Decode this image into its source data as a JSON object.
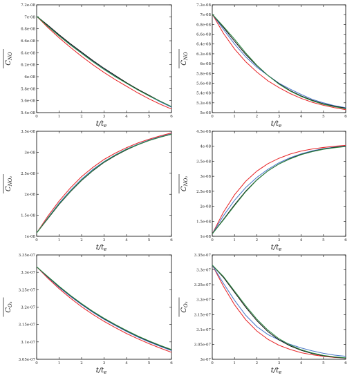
{
  "colors": {
    "red": "#e8282b",
    "blue": "#4a78c8",
    "black": "#111111",
    "green": "#2e8b45"
  },
  "chart_data": [
    {
      "type": "line",
      "ylabel_base": "C",
      "ylabel_sub": "NO",
      "xlabel": "t/t",
      "xlabel_sub": "e",
      "xlim": [
        0,
        6
      ],
      "ylim": [
        5.4e-08,
        7.2e-08
      ],
      "xticks": [
        0,
        1,
        2,
        3,
        4,
        5,
        6
      ],
      "yticks": [
        5.4e-08,
        5.6e-08,
        5.8e-08,
        6e-08,
        6.2e-08,
        6.4e-08,
        6.6e-08,
        6.8e-08,
        7e-08,
        7.2e-08
      ],
      "ytick_labels": [
        "5.4e-08",
        "5.6e-08",
        "5.8e-08",
        "6e-08",
        "6.2e-08",
        "6.4e-08",
        "6.6e-08",
        "6.8e-08",
        "7e-08",
        "7.2e-08"
      ],
      "x": [
        0,
        0.5,
        1,
        1.5,
        2,
        2.5,
        3,
        3.5,
        4,
        4.5,
        5,
        5.5,
        6
      ],
      "series": [
        {
          "color": "red",
          "values": [
            7.01e-08,
            6.82e-08,
            6.65e-08,
            6.49e-08,
            6.34e-08,
            6.2e-08,
            6.07e-08,
            5.95e-08,
            5.84e-08,
            5.73e-08,
            5.63e-08,
            5.54e-08,
            5.46e-08
          ]
        },
        {
          "color": "blue",
          "values": [
            7.01e-08,
            6.85e-08,
            6.69e-08,
            6.54e-08,
            6.4e-08,
            6.26e-08,
            6.13e-08,
            6.01e-08,
            5.89e-08,
            5.78e-08,
            5.68e-08,
            5.58e-08,
            5.49e-08
          ]
        },
        {
          "color": "black",
          "values": [
            7.01e-08,
            6.86e-08,
            6.7e-08,
            6.55e-08,
            6.41e-08,
            6.27e-08,
            6.14e-08,
            6.02e-08,
            5.9e-08,
            5.79e-08,
            5.69e-08,
            5.59e-08,
            5.5e-08
          ]
        },
        {
          "color": "green",
          "values": [
            7.01e-08,
            6.84e-08,
            6.68e-08,
            6.53e-08,
            6.39e-08,
            6.25e-08,
            6.12e-08,
            6e-08,
            5.89e-08,
            5.78e-08,
            5.68e-08,
            5.59e-08,
            5.5e-08
          ]
        }
      ]
    },
    {
      "type": "line",
      "ylabel_base": "C",
      "ylabel_sub": "NO",
      "xlabel": "t/t",
      "xlabel_sub": "e",
      "xlim": [
        0,
        6
      ],
      "ylim": [
        5e-08,
        7.2e-08
      ],
      "xticks": [
        0,
        1,
        2,
        3,
        4,
        5,
        6
      ],
      "yticks": [
        5e-08,
        5.2e-08,
        5.4e-08,
        5.6e-08,
        5.8e-08,
        6e-08,
        6.2e-08,
        6.4e-08,
        6.6e-08,
        6.8e-08,
        7e-08,
        7.2e-08
      ],
      "ytick_labels": [
        "5e-08",
        "5.2e-08",
        "5.4e-08",
        "5.6e-08",
        "5.8e-08",
        "6e-08",
        "6.2e-08",
        "6.4e-08",
        "6.6e-08",
        "6.8e-08",
        "7e-08",
        "7.2e-08"
      ],
      "x": [
        0,
        0.5,
        1,
        1.5,
        2,
        2.5,
        3,
        3.5,
        4,
        4.5,
        5,
        5.5,
        6
      ],
      "series": [
        {
          "color": "red",
          "values": [
            7.01e-08,
            6.62e-08,
            6.3e-08,
            6.04e-08,
            5.83e-08,
            5.65e-08,
            5.51e-08,
            5.39e-08,
            5.29e-08,
            5.21e-08,
            5.15e-08,
            5.1e-08,
            5.06e-08
          ]
        },
        {
          "color": "blue",
          "values": [
            7.01e-08,
            6.7e-08,
            6.4e-08,
            6.14e-08,
            5.93e-08,
            5.76e-08,
            5.6e-08,
            5.48e-08,
            5.37e-08,
            5.27e-08,
            5.2e-08,
            5.14e-08,
            5.1e-08
          ]
        },
        {
          "color": "black",
          "values": [
            7.01e-08,
            6.74e-08,
            6.46e-08,
            6.19e-08,
            5.96e-08,
            5.76e-08,
            5.59e-08,
            5.45e-08,
            5.34e-08,
            5.25e-08,
            5.18e-08,
            5.13e-08,
            5.09e-08
          ]
        },
        {
          "color": "green",
          "values": [
            7.01e-08,
            6.76e-08,
            6.5e-08,
            6.22e-08,
            5.97e-08,
            5.76e-08,
            5.58e-08,
            5.44e-08,
            5.33e-08,
            5.24e-08,
            5.17e-08,
            5.12e-08,
            5.08e-08
          ]
        }
      ]
    },
    {
      "type": "line",
      "ylabel_base": "C",
      "ylabel_sub": "NO₂",
      "xlabel": "t/t",
      "xlabel_sub": "e",
      "xlim": [
        0,
        6
      ],
      "ylim": [
        1e-08,
        3.5e-08
      ],
      "xticks": [
        0,
        1,
        2,
        3,
        4,
        5,
        6
      ],
      "yticks": [
        1e-08,
        1.5e-08,
        2e-08,
        2.5e-08,
        3e-08,
        3.5e-08
      ],
      "ytick_labels": [
        "1e-08",
        "1.5e-08",
        "2e-08",
        "2.5e-08",
        "3e-08",
        "3.5e-08"
      ],
      "x": [
        0,
        0.5,
        1,
        1.5,
        2,
        2.5,
        3,
        3.5,
        4,
        4.5,
        5,
        5.5,
        6
      ],
      "series": [
        {
          "color": "red",
          "values": [
            1.08e-08,
            1.48e-08,
            1.84e-08,
            2.15e-08,
            2.42e-08,
            2.64e-08,
            2.83e-08,
            2.98e-08,
            3.11e-08,
            3.22e-08,
            3.31e-08,
            3.39e-08,
            3.46e-08
          ]
        },
        {
          "color": "blue",
          "values": [
            1.08e-08,
            1.44e-08,
            1.79e-08,
            2.09e-08,
            2.36e-08,
            2.59e-08,
            2.78e-08,
            2.94e-08,
            3.08e-08,
            3.19e-08,
            3.29e-08,
            3.37e-08,
            3.44e-08
          ]
        },
        {
          "color": "black",
          "values": [
            1.08e-08,
            1.42e-08,
            1.76e-08,
            2.06e-08,
            2.33e-08,
            2.56e-08,
            2.76e-08,
            2.92e-08,
            3.06e-08,
            3.18e-08,
            3.28e-08,
            3.36e-08,
            3.43e-08
          ]
        },
        {
          "color": "green",
          "values": [
            1.08e-08,
            1.43e-08,
            1.77e-08,
            2.07e-08,
            2.34e-08,
            2.57e-08,
            2.77e-08,
            2.93e-08,
            3.07e-08,
            3.18e-08,
            3.28e-08,
            3.36e-08,
            3.43e-08
          ]
        }
      ]
    },
    {
      "type": "line",
      "ylabel_base": "C",
      "ylabel_sub": "NO₂",
      "xlabel": "t/t",
      "xlabel_sub": "e",
      "xlim": [
        0,
        6
      ],
      "ylim": [
        1e-08,
        4.5e-08
      ],
      "xticks": [
        0,
        1,
        2,
        3,
        4,
        5,
        6
      ],
      "yticks": [
        1e-08,
        1.5e-08,
        2e-08,
        2.5e-08,
        3e-08,
        3.5e-08,
        4e-08,
        4.5e-08
      ],
      "ytick_labels": [
        "1e-08",
        "1.5e-08",
        "2e-08",
        "2.5e-08",
        "3e-08",
        "3.5e-08",
        "4e-08",
        "4.5e-08"
      ],
      "x": [
        0,
        0.5,
        1,
        1.5,
        2,
        2.5,
        3,
        3.5,
        4,
        4.5,
        5,
        5.5,
        6
      ],
      "series": [
        {
          "color": "red",
          "values": [
            1.08e-08,
            1.8e-08,
            2.38e-08,
            2.83e-08,
            3.17e-08,
            3.42e-08,
            3.6e-08,
            3.74e-08,
            3.84e-08,
            3.91e-08,
            3.96e-08,
            4e-08,
            4.03e-08
          ]
        },
        {
          "color": "blue",
          "values": [
            1.08e-08,
            1.68e-08,
            2.2e-08,
            2.62e-08,
            2.96e-08,
            3.23e-08,
            3.45e-08,
            3.62e-08,
            3.75e-08,
            3.85e-08,
            3.92e-08,
            3.97e-08,
            4.01e-08
          ]
        },
        {
          "color": "black",
          "values": [
            1.08e-08,
            1.56e-08,
            2.05e-08,
            2.5e-08,
            2.88e-08,
            3.18e-08,
            3.41e-08,
            3.59e-08,
            3.73e-08,
            3.83e-08,
            3.91e-08,
            3.96e-08,
            4e-08
          ]
        },
        {
          "color": "green",
          "values": [
            1.08e-08,
            1.54e-08,
            2.02e-08,
            2.48e-08,
            2.87e-08,
            3.18e-08,
            3.41e-08,
            3.58e-08,
            3.72e-08,
            3.82e-08,
            3.9e-08,
            3.95e-08,
            3.99e-08
          ]
        }
      ]
    },
    {
      "type": "line",
      "ylabel_base": "C",
      "ylabel_sub": "O₃",
      "xlabel": "t/t",
      "xlabel_sub": "e",
      "xlim": [
        0,
        6
      ],
      "ylim": [
        3.05e-07,
        3.35e-07
      ],
      "xticks": [
        0,
        1,
        2,
        3,
        4,
        5,
        6
      ],
      "yticks": [
        3.05e-07,
        3.1e-07,
        3.15e-07,
        3.2e-07,
        3.25e-07,
        3.3e-07,
        3.35e-07
      ],
      "ytick_labels": [
        "3.05e-07",
        "3.1e-07",
        "3.15e-07",
        "3.2e-07",
        "3.25e-07",
        "3.3e-07",
        "3.35e-07"
      ],
      "x": [
        0,
        0.5,
        1,
        1.5,
        2,
        2.5,
        3,
        3.5,
        4,
        4.5,
        5,
        5.5,
        6
      ],
      "series": [
        {
          "color": "red",
          "values": [
            3.316e-07,
            3.283e-07,
            3.253e-07,
            3.226e-07,
            3.201e-07,
            3.179e-07,
            3.159e-07,
            3.141e-07,
            3.124e-07,
            3.109e-07,
            3.095e-07,
            3.082e-07,
            3.07e-07
          ]
        },
        {
          "color": "blue",
          "values": [
            3.316e-07,
            3.286e-07,
            3.257e-07,
            3.231e-07,
            3.207e-07,
            3.185e-07,
            3.165e-07,
            3.147e-07,
            3.13e-07,
            3.114e-07,
            3.1e-07,
            3.087e-07,
            3.075e-07
          ]
        },
        {
          "color": "black",
          "values": [
            3.316e-07,
            3.287e-07,
            3.259e-07,
            3.233e-07,
            3.209e-07,
            3.187e-07,
            3.167e-07,
            3.149e-07,
            3.132e-07,
            3.116e-07,
            3.102e-07,
            3.089e-07,
            3.077e-07
          ]
        },
        {
          "color": "green",
          "values": [
            3.316e-07,
            3.288e-07,
            3.26e-07,
            3.234e-07,
            3.21e-07,
            3.188e-07,
            3.168e-07,
            3.15e-07,
            3.133e-07,
            3.117e-07,
            3.103e-07,
            3.09e-07,
            3.078e-07
          ]
        }
      ]
    },
    {
      "type": "line",
      "ylabel_base": "C",
      "ylabel_sub": "O₃",
      "xlabel": "t/t",
      "xlabel_sub": "e",
      "xlim": [
        0,
        6
      ],
      "ylim": [
        3e-07,
        3.35e-07
      ],
      "xticks": [
        0,
        1,
        2,
        3,
        4,
        5,
        6
      ],
      "yticks": [
        3e-07,
        3.05e-07,
        3.1e-07,
        3.15e-07,
        3.2e-07,
        3.25e-07,
        3.3e-07,
        3.35e-07
      ],
      "ytick_labels": [
        "3e-07",
        "3.05e-07",
        "3.1e-07",
        "3.15e-07",
        "3.2e-07",
        "3.25e-07",
        "3.3e-07",
        "3.35e-07"
      ],
      "x": [
        0,
        0.5,
        1,
        1.5,
        2,
        2.5,
        3,
        3.5,
        4,
        4.5,
        5,
        5.5,
        6
      ],
      "series": [
        {
          "color": "red",
          "values": [
            3.316e-07,
            3.245e-07,
            3.183e-07,
            3.133e-07,
            3.095e-07,
            3.067e-07,
            3.047e-07,
            3.033e-07,
            3.022e-07,
            3.015e-07,
            3.01e-07,
            3.006e-07,
            3.004e-07
          ]
        },
        {
          "color": "blue",
          "values": [
            3.316e-07,
            3.255e-07,
            3.198e-07,
            3.148e-07,
            3.11e-07,
            3.083e-07,
            3.065e-07,
            3.05e-07,
            3.038e-07,
            3.028e-07,
            3.02e-07,
            3.014e-07,
            3.01e-07
          ]
        },
        {
          "color": "black",
          "values": [
            3.316e-07,
            3.275e-07,
            3.225e-07,
            3.175e-07,
            3.13e-07,
            3.093e-07,
            3.065e-07,
            3.045e-07,
            3.03e-07,
            3.019e-07,
            3.012e-07,
            3.007e-07,
            3.004e-07
          ]
        },
        {
          "color": "green",
          "values": [
            3.316e-07,
            3.278e-07,
            3.229e-07,
            3.18e-07,
            3.135e-07,
            3.098e-07,
            3.069e-07,
            3.048e-07,
            3.032e-07,
            3.021e-07,
            3.013e-07,
            3.008e-07,
            3.005e-07
          ]
        }
      ]
    }
  ]
}
